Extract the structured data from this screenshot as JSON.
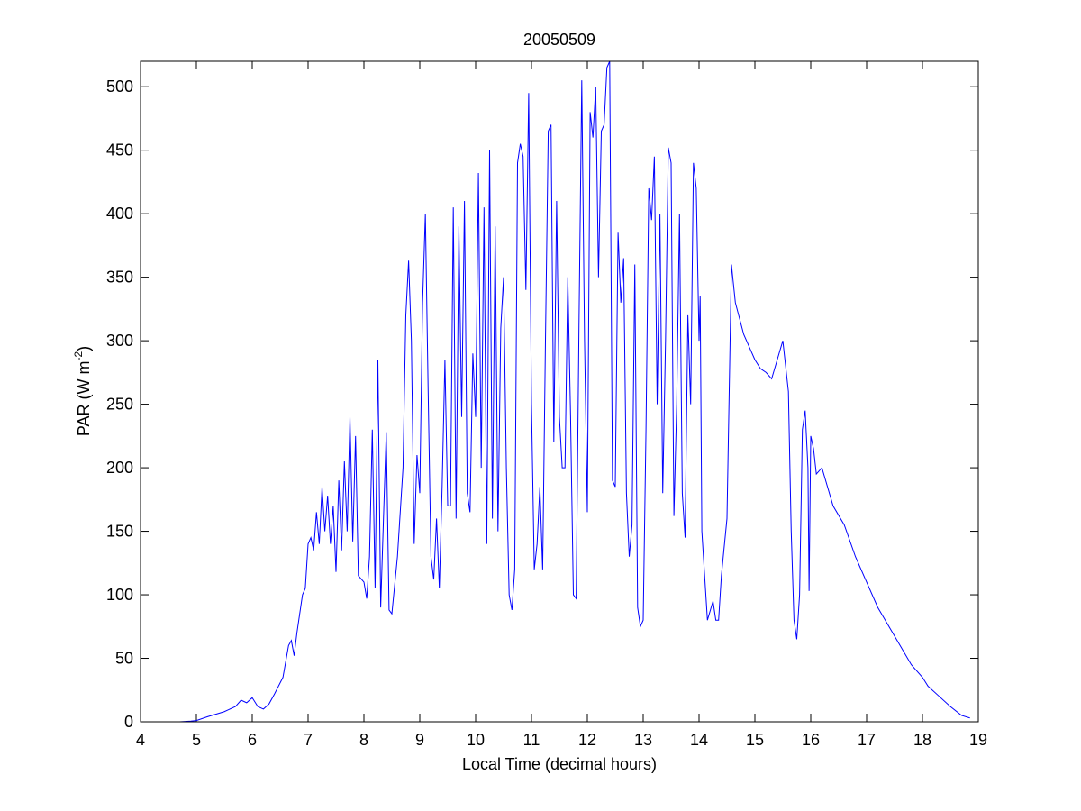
{
  "chart_data": {
    "type": "line",
    "title": "20050509",
    "xlabel": "Local Time (decimal hours)",
    "ylabel_parts": [
      "PAR (W m",
      "-2",
      ")"
    ],
    "xlim": [
      4,
      19
    ],
    "xticks": [
      4,
      5,
      6,
      7,
      8,
      9,
      10,
      11,
      12,
      13,
      14,
      15,
      16,
      17,
      18,
      19
    ],
    "ylim": [
      0,
      520
    ],
    "yticks": [
      0,
      50,
      100,
      150,
      200,
      250,
      300,
      350,
      400,
      450,
      500
    ],
    "series": [
      {
        "color": "#0000ff",
        "x": [
          4.7,
          4.9,
          5.0,
          5.2,
          5.5,
          5.7,
          5.8,
          5.9,
          6.0,
          6.1,
          6.2,
          6.3,
          6.4,
          6.55,
          6.65,
          6.7,
          6.75,
          6.8,
          6.9,
          6.95,
          7.0,
          7.05,
          7.1,
          7.15,
          7.2,
          7.25,
          7.3,
          7.35,
          7.4,
          7.45,
          7.5,
          7.55,
          7.6,
          7.65,
          7.7,
          7.75,
          7.8,
          7.85,
          7.9,
          8.0,
          8.05,
          8.1,
          8.15,
          8.2,
          8.25,
          8.3,
          8.35,
          8.4,
          8.45,
          8.5,
          8.6,
          8.7,
          8.75,
          8.8,
          8.85,
          8.9,
          8.95,
          9.0,
          9.05,
          9.1,
          9.15,
          9.2,
          9.25,
          9.3,
          9.35,
          9.4,
          9.45,
          9.5,
          9.55,
          9.6,
          9.65,
          9.7,
          9.75,
          9.8,
          9.85,
          9.9,
          9.95,
          10.0,
          10.05,
          10.1,
          10.15,
          10.2,
          10.25,
          10.3,
          10.35,
          10.4,
          10.45,
          10.5,
          10.55,
          10.6,
          10.65,
          10.7,
          10.75,
          10.8,
          10.85,
          10.9,
          10.95,
          11.0,
          11.05,
          11.1,
          11.15,
          11.2,
          11.25,
          11.3,
          11.35,
          11.4,
          11.45,
          11.5,
          11.55,
          11.6,
          11.65,
          11.7,
          11.75,
          11.8,
          11.85,
          11.9,
          11.95,
          12.0,
          12.05,
          12.1,
          12.15,
          12.2,
          12.25,
          12.3,
          12.35,
          12.4,
          12.45,
          12.5,
          12.55,
          12.6,
          12.65,
          12.7,
          12.75,
          12.8,
          12.85,
          12.9,
          12.95,
          13.0,
          13.05,
          13.1,
          13.15,
          13.2,
          13.25,
          13.3,
          13.35,
          13.4,
          13.45,
          13.5,
          13.55,
          13.6,
          13.65,
          13.7,
          13.75,
          13.8,
          13.85,
          13.9,
          13.95,
          14.0,
          14.02,
          14.05,
          14.15,
          14.25,
          14.3,
          14.35,
          14.4,
          14.5,
          14.58,
          14.65,
          14.8,
          14.9,
          15.0,
          15.1,
          15.2,
          15.3,
          15.4,
          15.5,
          15.6,
          15.65,
          15.7,
          15.75,
          15.8,
          15.85,
          15.9,
          15.95,
          15.97,
          16.0,
          16.05,
          16.1,
          16.2,
          16.4,
          16.6,
          16.8,
          17.0,
          17.2,
          17.4,
          17.6,
          17.8,
          18.0,
          18.1,
          18.3,
          18.5,
          18.7,
          18.85
        ],
        "values": [
          0,
          0.5,
          1,
          4,
          8,
          12,
          17,
          15,
          19,
          12,
          10,
          14,
          22,
          35,
          60,
          64,
          52,
          70,
          100,
          105,
          140,
          145,
          135,
          165,
          140,
          185,
          150,
          178,
          140,
          170,
          118,
          190,
          135,
          205,
          150,
          240,
          142,
          225,
          115,
          110,
          97,
          130,
          230,
          105,
          285,
          90,
          160,
          228,
          88,
          85,
          130,
          200,
          320,
          363,
          300,
          140,
          210,
          180,
          330,
          400,
          260,
          130,
          112,
          160,
          105,
          185,
          285,
          170,
          170,
          405,
          160,
          390,
          240,
          410,
          180,
          165,
          290,
          240,
          432,
          200,
          405,
          140,
          450,
          160,
          390,
          150,
          310,
          350,
          200,
          100,
          88,
          120,
          440,
          455,
          445,
          340,
          495,
          250,
          120,
          140,
          185,
          120,
          300,
          465,
          470,
          220,
          410,
          240,
          200,
          200,
          350,
          240,
          100,
          97,
          310,
          505,
          300,
          165,
          480,
          460,
          500,
          350,
          465,
          470,
          515,
          520,
          190,
          185,
          385,
          330,
          365,
          180,
          130,
          155,
          360,
          90,
          75,
          80,
          230,
          420,
          395,
          445,
          250,
          400,
          180,
          300,
          452,
          440,
          162,
          250,
          400,
          180,
          145,
          320,
          250,
          440,
          420,
          300,
          335,
          150,
          80,
          95,
          80,
          80,
          115,
          160,
          360,
          330,
          305,
          295,
          285,
          278,
          275,
          270,
          285,
          300,
          260,
          150,
          80,
          65,
          100,
          230,
          245,
          200,
          103,
          225,
          215,
          195,
          200,
          170,
          155,
          130,
          110,
          90,
          75,
          60,
          45,
          35,
          28,
          20,
          12,
          5,
          3
        ]
      }
    ]
  }
}
